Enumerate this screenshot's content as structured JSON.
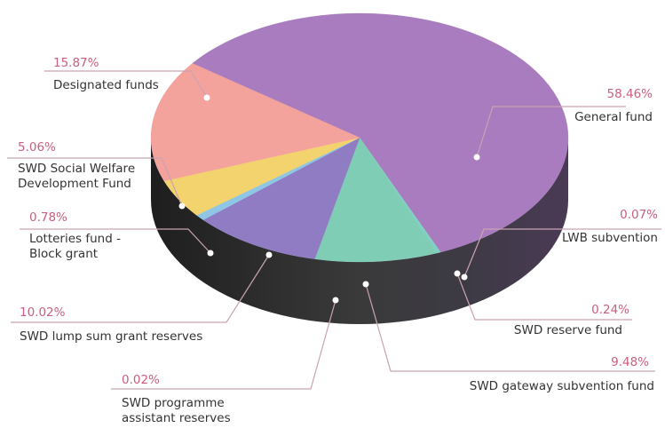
{
  "chart_data": {
    "type": "pie",
    "labels": [
      "General fund",
      "LWB subvention",
      "SWD reserve fund",
      "SWD gateway subvention fund",
      "SWD programme assistant reserves",
      "SWD lump sum grant reserves",
      "Lotteries fund - Block grant",
      "SWD Social Welfare Development Fund",
      "Designated funds"
    ],
    "values": [
      58.46,
      0.07,
      0.24,
      9.48,
      0.02,
      10.02,
      0.78,
      5.06,
      15.87
    ],
    "value_labels": [
      "58.46%",
      "0.07%",
      "0.24%",
      "9.48%",
      "0.02%",
      "10.02%",
      "0.78%",
      "5.06%",
      "15.87%"
    ],
    "colors": [
      "#a87cbe",
      "#86d3c4",
      "#7fd0c0",
      "#80cdb6",
      "#9a7dc4",
      "#8f7cc2",
      "#8ec6e4",
      "#f3d36e",
      "#f3a29c"
    ]
  }
}
